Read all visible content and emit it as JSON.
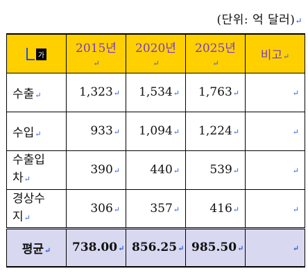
{
  "unit_note": "(단위: 억 달러)",
  "header": {
    "corner_mark": "가",
    "years": [
      "2015년",
      "2020년",
      "2025년"
    ],
    "note": "비고"
  },
  "rows": [
    {
      "label": "수출",
      "values": [
        "1,323",
        "1,534",
        "1,763"
      ],
      "note": ""
    },
    {
      "label": "수입",
      "values": [
        "933",
        "1,094",
        "1,224"
      ],
      "note": ""
    },
    {
      "label": "수출입차",
      "label_lines": [
        "수출입",
        "차"
      ],
      "values": [
        "390",
        "440",
        "539"
      ],
      "note": ""
    },
    {
      "label": "경상수지",
      "label_lines": [
        "경상수",
        "지"
      ],
      "values": [
        "306",
        "357",
        "416"
      ],
      "note": ""
    }
  ],
  "average": {
    "label": "평균",
    "values": [
      "738.00",
      "856.25",
      "985.50"
    ],
    "note": ""
  },
  "paragraph_mark": "↵",
  "colors": {
    "header_bg": "#ffd000",
    "header_text": "#7a3bbd",
    "avg_bg": "#d8d9f0",
    "mark": "#2a5bd7"
  }
}
